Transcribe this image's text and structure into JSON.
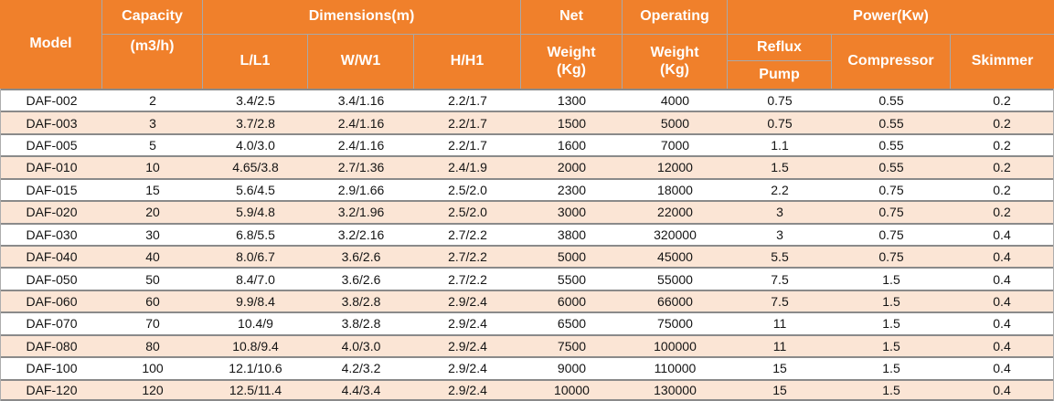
{
  "colors": {
    "header_bg": "#F0802B",
    "header_text": "#FFFFFF",
    "header_border": "#A8A8A8",
    "row_bg": "#FFFFFF",
    "row_alt_bg": "#FBE5D5",
    "row_border": "#8A8A8A",
    "data_text": "#141414"
  },
  "table": {
    "header": {
      "model": "Model",
      "capacity_group": "Capacity",
      "capacity_unit": "(m3/h)",
      "dimensions_group": "Dimensions(m)",
      "dim_l": "L/L1",
      "dim_w": "W/W1",
      "dim_h": "H/H1",
      "net_group": "Net",
      "net_line1": "Weight",
      "net_line2": "(Kg)",
      "operating_group": "Operating",
      "operating_line1": "Weight",
      "operating_line2": "(Kg)",
      "power_group": "Power(Kw)",
      "reflux_line1": "Reflux",
      "reflux_line2": "Pump",
      "compressor": "Compressor",
      "skimmer": "Skimmer"
    },
    "column_keys": [
      "model",
      "capacity",
      "l-l1",
      "w-w1",
      "h-h1",
      "net-weight",
      "operating-weight",
      "reflux-pump",
      "compressor",
      "skimmer"
    ],
    "rows": [
      [
        "DAF-002",
        "2",
        "3.4/2.5",
        "3.4/1.16",
        "2.2/1.7",
        "1300",
        "4000",
        "0.75",
        "0.55",
        "0.2"
      ],
      [
        "DAF-003",
        "3",
        "3.7/2.8",
        "2.4/1.16",
        "2.2/1.7",
        "1500",
        "5000",
        "0.75",
        "0.55",
        "0.2"
      ],
      [
        "DAF-005",
        "5",
        "4.0/3.0",
        "2.4/1.16",
        "2.2/1.7",
        "1600",
        "7000",
        "1.1",
        "0.55",
        "0.2"
      ],
      [
        "DAF-010",
        "10",
        "4.65/3.8",
        "2.7/1.36",
        "2.4/1.9",
        "2000",
        "12000",
        "1.5",
        "0.55",
        "0.2"
      ],
      [
        "DAF-015",
        "15",
        "5.6/4.5",
        "2.9/1.66",
        "2.5/2.0",
        "2300",
        "18000",
        "2.2",
        "0.75",
        "0.2"
      ],
      [
        "DAF-020",
        "20",
        "5.9/4.8",
        "3.2/1.96",
        "2.5/2.0",
        "3000",
        "22000",
        "3",
        "0.75",
        "0.2"
      ],
      [
        "DAF-030",
        "30",
        "6.8/5.5",
        "3.2/2.16",
        "2.7/2.2",
        "3800",
        "320000",
        "3",
        "0.75",
        "0.4"
      ],
      [
        "DAF-040",
        "40",
        "8.0/6.7",
        "3.6/2.6",
        "2.7/2.2",
        "5000",
        "45000",
        "5.5",
        "0.75",
        "0.4"
      ],
      [
        "DAF-050",
        "50",
        "8.4/7.0",
        "3.6/2.6",
        "2.7/2.2",
        "5500",
        "55000",
        "7.5",
        "1.5",
        "0.4"
      ],
      [
        "DAF-060",
        "60",
        "9.9/8.4",
        "3.8/2.8",
        "2.9/2.4",
        "6000",
        "66000",
        "7.5",
        "1.5",
        "0.4"
      ],
      [
        "DAF-070",
        "70",
        "10.4/9",
        "3.8/2.8",
        "2.9/2.4",
        "6500",
        "75000",
        "11",
        "1.5",
        "0.4"
      ],
      [
        "DAF-080",
        "80",
        "10.8/9.4",
        "4.0/3.0",
        "2.9/2.4",
        "7500",
        "100000",
        "11",
        "1.5",
        "0.4"
      ],
      [
        "DAF-100",
        "100",
        "12.1/10.6",
        "4.2/3.2",
        "2.9/2.4",
        "9000",
        "110000",
        "15",
        "1.5",
        "0.4"
      ],
      [
        "DAF-120",
        "120",
        "12.5/11.4",
        "4.4/3.4",
        "2.9/2.4",
        "10000",
        "130000",
        "15",
        "1.5",
        "0.4"
      ]
    ]
  }
}
